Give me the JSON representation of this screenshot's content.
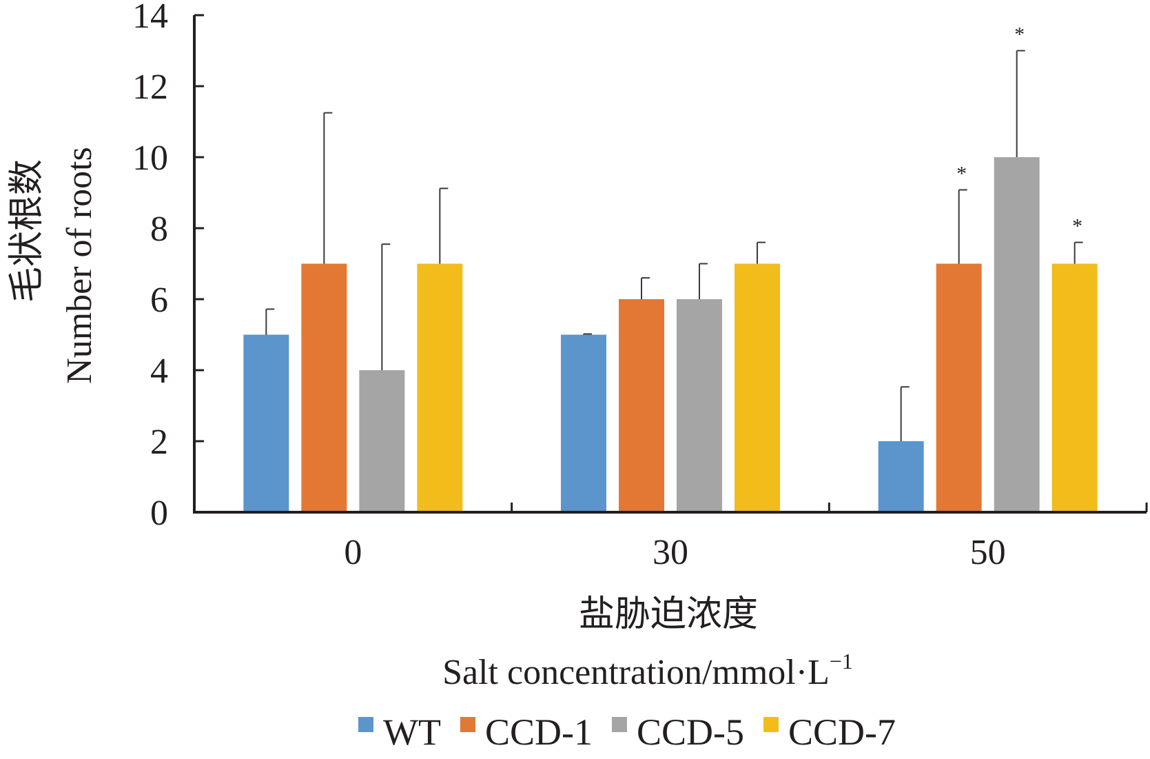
{
  "chart_data": {
    "type": "bar",
    "categories": [
      "0",
      "30",
      "50"
    ],
    "series": [
      {
        "name": "WT",
        "color": "#5b95cb",
        "values": [
          5,
          5,
          2
        ],
        "errors": [
          0.72,
          0.02,
          1.53
        ],
        "marks": [
          "",
          "",
          ""
        ]
      },
      {
        "name": "CCD-1",
        "color": "#e37834",
        "values": [
          7,
          6,
          7
        ],
        "errors": [
          4.25,
          0.6,
          2.08
        ],
        "marks": [
          "",
          "",
          "*"
        ]
      },
      {
        "name": "CCD-5",
        "color": "#a5a5a5",
        "values": [
          4,
          6,
          10
        ],
        "errors": [
          3.55,
          1.0,
          3.0
        ],
        "marks": [
          "",
          "",
          "*"
        ]
      },
      {
        "name": "CCD-7",
        "color": "#f2bc1b",
        "values": [
          7,
          7,
          7
        ],
        "errors": [
          2.12,
          0.6,
          0.6
        ],
        "marks": [
          "",
          "",
          "*"
        ]
      }
    ],
    "ylabel_cn": "毛状根数",
    "ylabel_en": "Number of roots",
    "xlabel_cn": "盐胁迫浓度",
    "xlabel_en": "Salt concentration/mmol·L",
    "xlabel_en_sup": "−1",
    "ylim": [
      0,
      14
    ],
    "yticks": [
      "0",
      "2",
      "4",
      "6",
      "8",
      "10",
      "12",
      "14"
    ],
    "grid": false,
    "legend_position": "bottom"
  }
}
